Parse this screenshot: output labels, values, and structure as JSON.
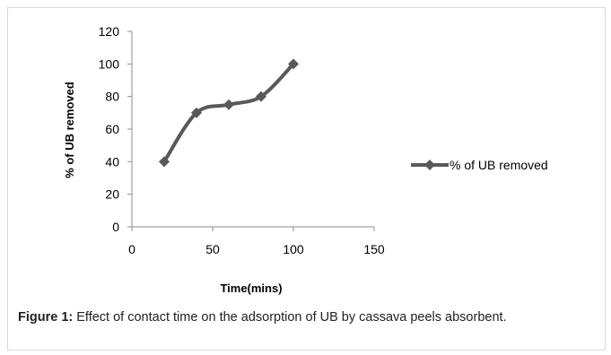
{
  "chart_data": {
    "type": "line",
    "xlabel": "Time(mins)",
    "ylabel": "% of UB  removed",
    "x": [
      20,
      40,
      60,
      80,
      100
    ],
    "series": [
      {
        "name": "% of UB removed",
        "values": [
          40,
          70,
          75,
          80,
          100
        ],
        "color": "#595959"
      }
    ],
    "xlim": [
      0,
      150
    ],
    "ylim": [
      0,
      120
    ],
    "xticks": [
      "0",
      "50",
      "100",
      "150"
    ],
    "yticks": [
      "0",
      "20",
      "40",
      "60",
      "80",
      "100",
      "120"
    ],
    "xtick_values": [
      0,
      50,
      100,
      150
    ],
    "ytick_values": [
      0,
      20,
      40,
      60,
      80,
      100,
      120
    ],
    "grid": false,
    "legend_position": "right",
    "marker": "diamond",
    "smooth": true
  },
  "caption": {
    "label": "Figure 1:",
    "text": " Effect of contact time on the adsorption of UB by cassava peels absorbent."
  }
}
